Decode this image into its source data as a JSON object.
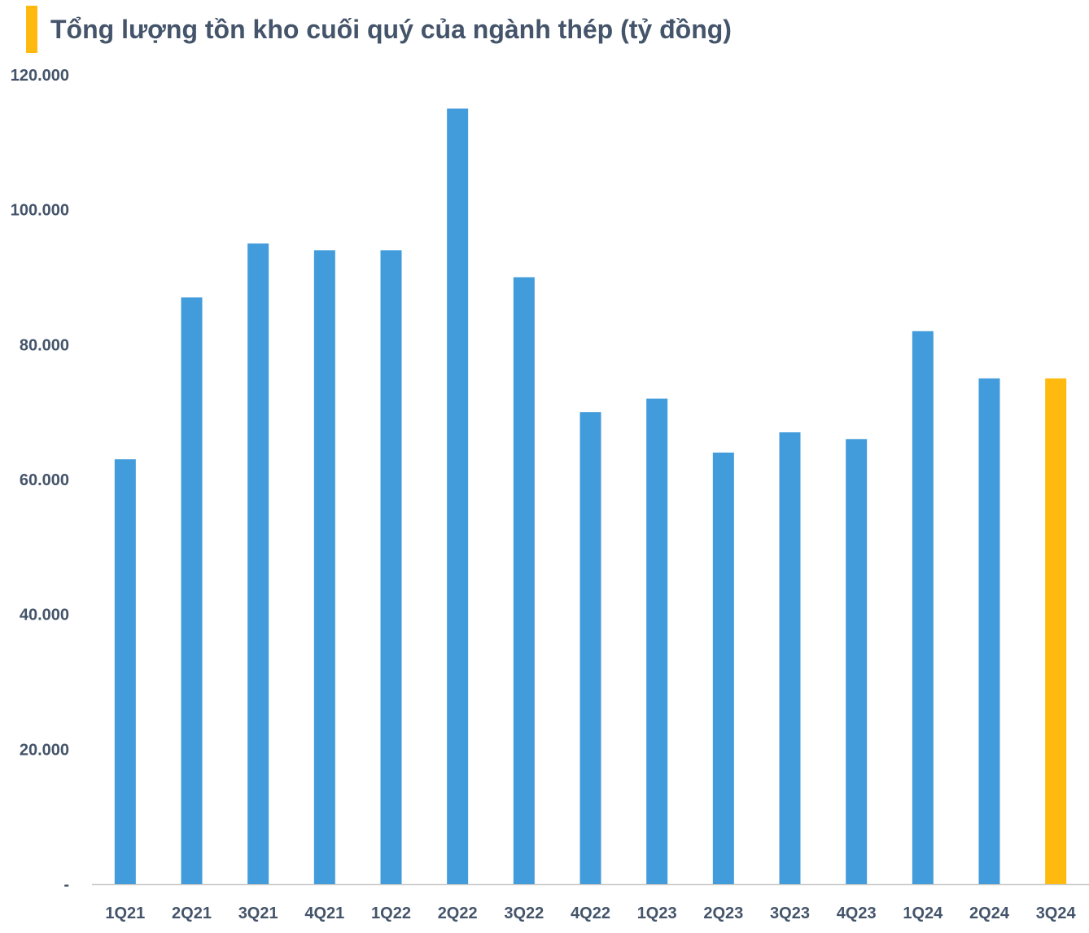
{
  "title": "Tổng lượng tồn kho cuối quý của ngành thép (tỷ đồng)",
  "colors": {
    "bar": "#429cdb",
    "highlight": "#ffb90f",
    "accent": "#ffb90f",
    "text": "#44546a",
    "axis": "#c9c9c9"
  },
  "chart_data": {
    "type": "bar",
    "title": "Tổng lượng tồn kho cuối quý của ngành thép (tỷ đồng)",
    "xlabel": "",
    "ylabel": "",
    "categories": [
      "1Q21",
      "2Q21",
      "3Q21",
      "4Q21",
      "1Q22",
      "2Q22",
      "3Q22",
      "4Q22",
      "1Q23",
      "2Q23",
      "3Q23",
      "4Q23",
      "1Q24",
      "2Q24",
      "3Q24"
    ],
    "values": [
      63000,
      87000,
      95000,
      94000,
      94000,
      115000,
      90000,
      70000,
      72000,
      64000,
      67000,
      66000,
      82000,
      75000,
      75000
    ],
    "highlight_index": 14,
    "ylim": [
      0,
      120000
    ],
    "yticks": [
      0,
      20000,
      40000,
      60000,
      80000,
      100000,
      120000
    ],
    "ytick_labels": [
      "-",
      "20.000",
      "40.000",
      "60.000",
      "80.000",
      "100.000",
      "120.000"
    ],
    "grid": false,
    "legend": "none"
  }
}
